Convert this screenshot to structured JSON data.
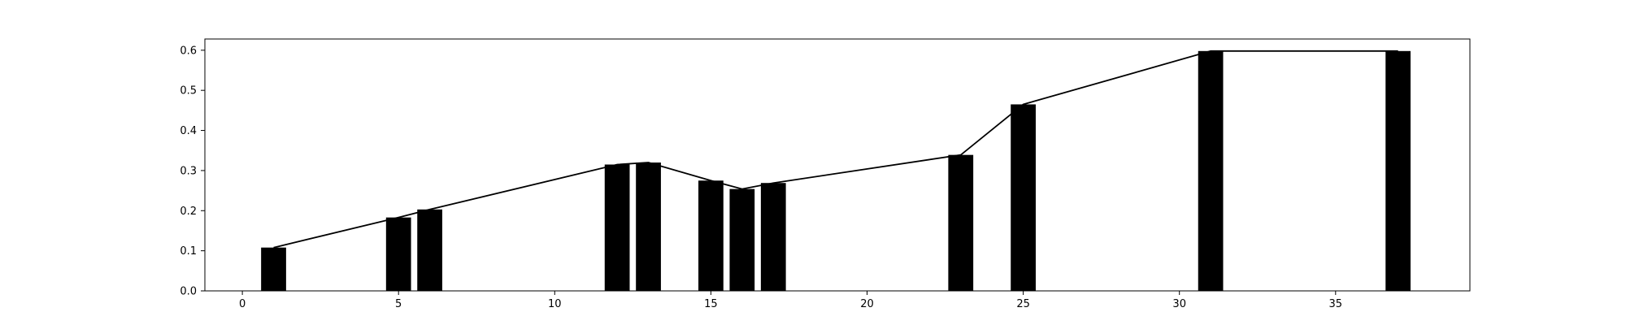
{
  "chart_data": {
    "type": "bar",
    "title": "",
    "xlabel": "",
    "ylabel": "",
    "xlim": [
      -1.2,
      39.3
    ],
    "ylim": [
      0,
      0.628
    ],
    "xticks": [
      0,
      5,
      10,
      15,
      20,
      25,
      30,
      35
    ],
    "yticks": [
      0.0,
      0.1,
      0.2,
      0.3,
      0.4,
      0.5,
      0.6
    ],
    "ytick_labels": [
      "0.0",
      "0.1",
      "0.2",
      "0.3",
      "0.4",
      "0.5",
      "0.6"
    ],
    "grid": false,
    "bar_color": "#000000",
    "line_color": "#000000",
    "bar_width": 0.8,
    "series": [
      {
        "type": "bar",
        "x": [
          1,
          5,
          6,
          12,
          13,
          15,
          16,
          17,
          23,
          25,
          31,
          37
        ],
        "values": [
          0.108,
          0.183,
          0.203,
          0.315,
          0.32,
          0.275,
          0.254,
          0.269,
          0.339,
          0.465,
          0.598,
          0.598
        ]
      },
      {
        "type": "line",
        "x": [
          1,
          5,
          6,
          12,
          13,
          15,
          16,
          17,
          23,
          25,
          31,
          37
        ],
        "values": [
          0.108,
          0.183,
          0.203,
          0.315,
          0.32,
          0.275,
          0.254,
          0.269,
          0.339,
          0.465,
          0.598,
          0.598
        ]
      }
    ]
  }
}
